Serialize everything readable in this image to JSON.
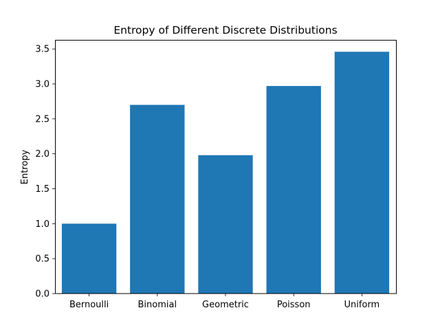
{
  "chart_data": {
    "type": "bar",
    "title": "Entropy of Different Discrete Distributions",
    "xlabel": "",
    "ylabel": "Entropy",
    "categories": [
      "Bernoulli",
      "Binomial",
      "Geometric",
      "Poisson",
      "Uniform"
    ],
    "values": [
      1.0,
      2.7,
      1.98,
      2.97,
      3.46
    ],
    "ylim": [
      0,
      3.63
    ],
    "yticks": [
      0.0,
      0.5,
      1.0,
      1.5,
      2.0,
      2.5,
      3.0,
      3.5
    ],
    "ytick_labels": [
      "0.0",
      "0.5",
      "1.0",
      "1.5",
      "2.0",
      "2.5",
      "3.0",
      "3.5"
    ],
    "grid": false,
    "legend": "none",
    "bar_color": "#1f77b4"
  }
}
